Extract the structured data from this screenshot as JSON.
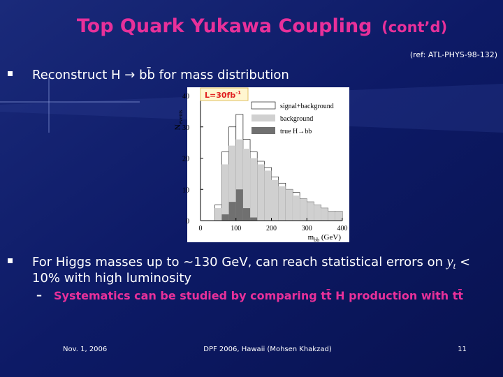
{
  "slide": {
    "title": "Top Quark Yukawa Coupling",
    "title_suffix": "(cont’d)",
    "reference": "(ref: ATL-PHYS-98-132)",
    "bullet_1": "Reconstruct H → bb̄ for mass distribution",
    "bullet_2": {
      "before": "For Higgs masses up to ~130 GeV, can reach statistical errors on ",
      "symbol": "y",
      "subscript": "t",
      "line_1_end": " <",
      "line_2": "10% with high luminosity"
    },
    "sub_bullet": "Systematics can be studied by comparing tt̄ H production with tt̄",
    "footer": {
      "date": "Nov. 1, 2006",
      "center": "DPF 2006, Hawaii  (Mohsen Khakzad)",
      "page": "11"
    }
  },
  "chart_data": {
    "type": "histogram",
    "luminosity": {
      "main": "L=30fb",
      "superscript": "-1"
    },
    "y_label": {
      "main": "N",
      "subscript": "events"
    },
    "x_label": {
      "main": "m",
      "subscript": "bb",
      "unit": " (GeV)"
    },
    "bins": [
      40,
      60,
      80,
      100,
      120,
      140,
      160,
      180,
      200,
      220,
      240,
      260,
      280,
      300,
      320,
      340,
      360,
      380,
      400
    ],
    "series": [
      {
        "name": "signal+background",
        "color": "#ffffff",
        "values": [
          5,
          22,
          30,
          34,
          26,
          22,
          19,
          17,
          14,
          12,
          10,
          9,
          7,
          6,
          5,
          4,
          3,
          3
        ]
      },
      {
        "name": "background",
        "color": "#d0d0d0",
        "values": [
          4,
          18,
          24,
          26,
          23,
          20,
          18,
          16,
          13,
          11,
          10,
          8,
          7,
          6,
          5,
          4,
          3,
          3
        ]
      },
      {
        "name": "true H→bb",
        "color": "#707070",
        "values": [
          0,
          2,
          6,
          10,
          4,
          1,
          0,
          0,
          0,
          0,
          0,
          0,
          0,
          0,
          0,
          0,
          0,
          0
        ]
      }
    ],
    "xlim": [
      0,
      400
    ],
    "ylim": [
      0,
      40
    ],
    "xticks": [
      0,
      100,
      200,
      300,
      400
    ],
    "yticks": [
      0,
      10,
      20,
      30,
      40
    ]
  }
}
